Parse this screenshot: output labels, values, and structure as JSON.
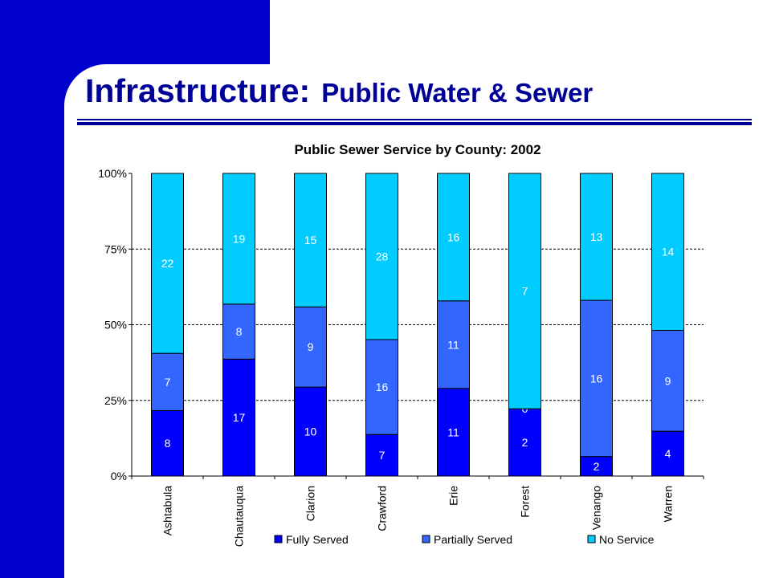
{
  "header": {
    "title_main": "Infrastructure:",
    "title_sub": "Public Water & Sewer"
  },
  "colors": {
    "brand_blue": "#0000cc",
    "title_blue": "#000099",
    "fully_served": "#0000ff",
    "partially_served": "#3366ff",
    "no_service": "#00ccff"
  },
  "chart_data": {
    "type": "bar",
    "stacked": "percent",
    "title": "Public Sewer Service by County: 2002",
    "categories": [
      "Ashtabula",
      "Chautauqua",
      "Clarion",
      "Crawford",
      "Erie",
      "Forest",
      "Venango",
      "Warren"
    ],
    "series": [
      {
        "name": "Fully Served",
        "values": [
          8,
          17,
          10,
          7,
          11,
          2,
          2,
          4
        ],
        "color": "#0000ff"
      },
      {
        "name": "Partially Served",
        "values": [
          7,
          8,
          9,
          16,
          11,
          0,
          16,
          9
        ],
        "color": "#3366ff"
      },
      {
        "name": "No Service",
        "values": [
          22,
          19,
          15,
          28,
          16,
          7,
          13,
          14
        ],
        "color": "#00ccff"
      }
    ],
    "y_ticks": [
      "0%",
      "25%",
      "50%",
      "75%",
      "100%"
    ],
    "ylim": [
      0,
      100
    ],
    "grid": "dashed horizontal",
    "legend": "bottom"
  }
}
